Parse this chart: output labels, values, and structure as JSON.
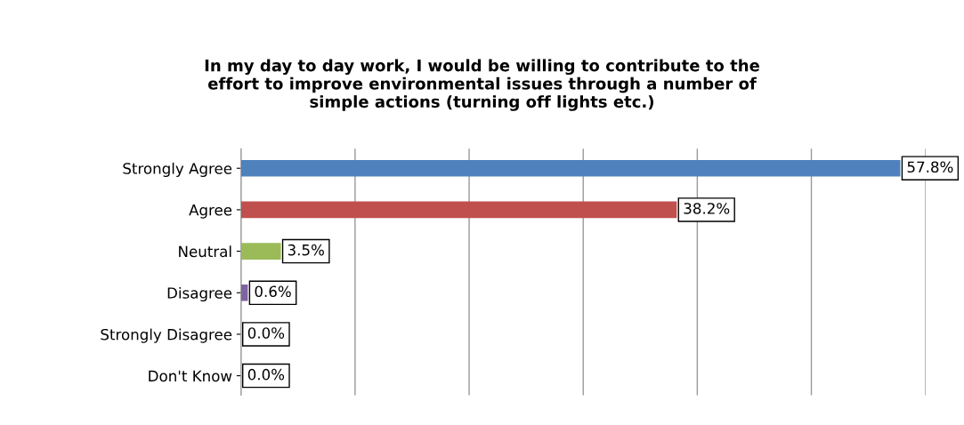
{
  "chart_data": {
    "type": "bar",
    "orientation": "horizontal",
    "title": "In my day to day work, I would be willing to contribute to the\neffort to improve environmental issues through a number of\nsimple actions (turning off lights etc.)",
    "categories": [
      "Strongly Agree",
      "Agree",
      "Neutral",
      "Disagree",
      "Strongly Disagree",
      "Don't Know"
    ],
    "values": [
      57.8,
      38.2,
      3.5,
      0.6,
      0.0,
      0.0
    ],
    "colors": [
      "#4f81bd",
      "#c0504d",
      "#9bbb59",
      "#8064a2",
      "#31859c",
      "#e46c0a"
    ],
    "value_labels": [
      "57.8%",
      "38.2%",
      "3.5%",
      "0.6%",
      "0.0%",
      "0.0%"
    ],
    "xlim": [
      0,
      60
    ],
    "xticks": [
      {
        "value": 0,
        "label": null
      },
      {
        "value": 10,
        "label": null
      },
      {
        "value": 20,
        "label": null
      },
      {
        "value": 30,
        "label": null
      },
      {
        "value": 40,
        "label": null
      },
      {
        "value": 50,
        "label": null
      },
      {
        "value": 60,
        "label": null
      }
    ],
    "grid": "x",
    "tick_labels": "y",
    "legend": false
  }
}
